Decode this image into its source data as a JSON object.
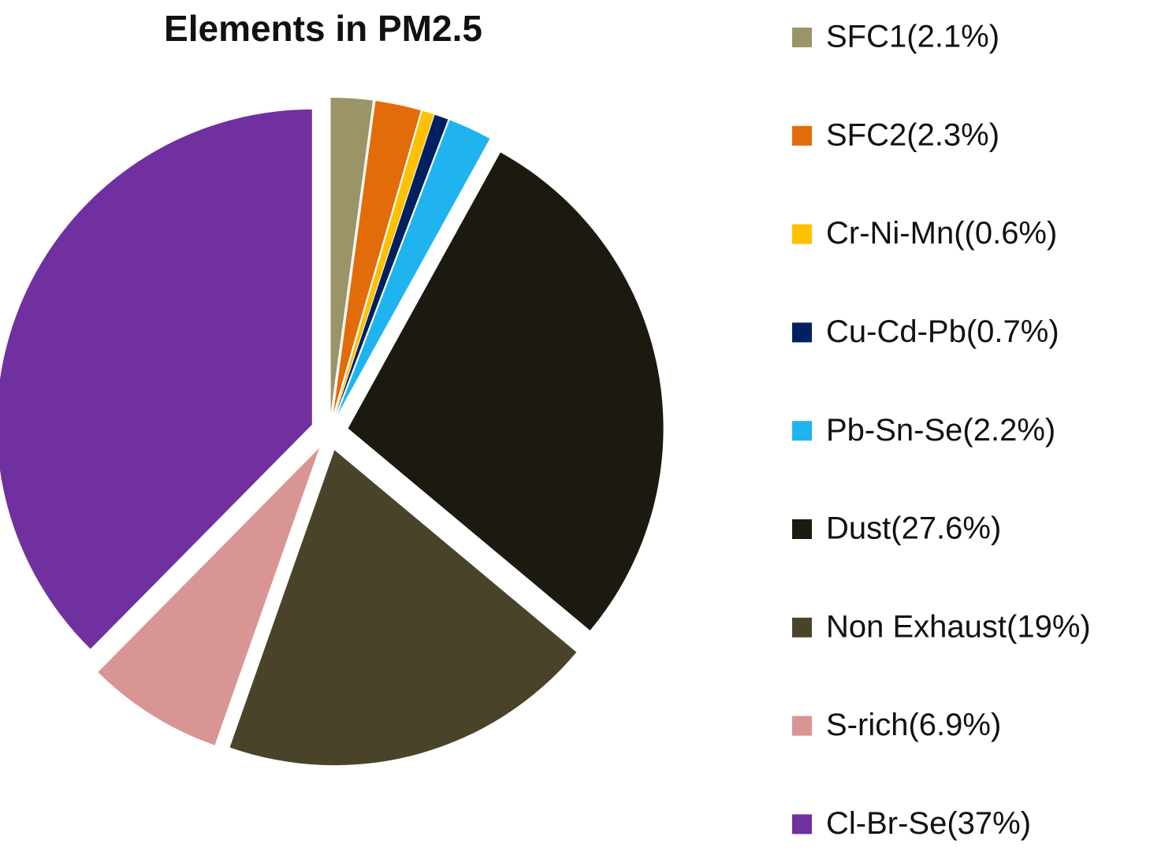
{
  "chart_data": {
    "type": "pie",
    "title": "Elements in PM2.5",
    "categories": [
      "SFC1(2.1%)",
      "SFC2(2.3%)",
      "Cr-Ni-Mn((0.6%)",
      "Cu-Cd-Pb(0.7%)",
      "Pb-Sn-Se(2.2%)",
      "Dust(27.6%)",
      "Non Exhaust(19%)",
      "S-rich(6.9%)",
      "Cl-Br-Se(37%)"
    ],
    "values": [
      2.1,
      2.3,
      0.6,
      0.7,
      2.2,
      27.6,
      19,
      6.9,
      37
    ],
    "colors": [
      "#9b9467",
      "#e36c0a",
      "#ffc000",
      "#002060",
      "#1fb4ef",
      "#1c1a10",
      "#494429",
      "#d99594",
      "#7030a0"
    ],
    "legend": "right"
  }
}
